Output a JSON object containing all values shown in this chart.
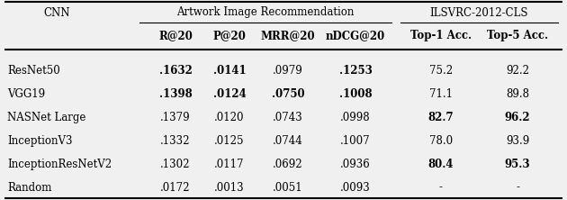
{
  "title_left": "CNN",
  "header_group1": "Artwork Image Recommendation",
  "header_group2": "ILSVRC-2012-CLS",
  "col_headers": [
    "R@20",
    "P@20",
    "MRR@20",
    "nDCG@20",
    "Top-1 Acc.",
    "Top-5 Acc."
  ],
  "rows": [
    [
      "ResNet50",
      ".1632",
      ".0141",
      ".0979",
      ".1253",
      "75.2",
      "92.2"
    ],
    [
      "VGG19",
      ".1398",
      ".0124",
      ".0750",
      ".1008",
      "71.1",
      "89.8"
    ],
    [
      "NASNet Large",
      ".1379",
      ".0120",
      ".0743",
      ".0998",
      "82.7",
      "96.2"
    ],
    [
      "InceptionV3",
      ".1332",
      ".0125",
      ".0744",
      ".1007",
      "78.0",
      "93.9"
    ],
    [
      "InceptionResNetV2",
      ".1302",
      ".0117",
      ".0692",
      ".0936",
      "80.4",
      "95.3"
    ],
    [
      "Random",
      ".0172",
      ".0013",
      ".0051",
      ".0093",
      "-",
      "-"
    ]
  ],
  "bold_map": {
    "0": [
      1,
      2,
      4
    ],
    "1": [
      1,
      2,
      3,
      4
    ],
    "2": [
      5,
      6
    ],
    "4": [
      5,
      6
    ]
  },
  "bg_color": "#f0f0f0",
  "font_size": 8.5,
  "header_font_size": 8.5
}
